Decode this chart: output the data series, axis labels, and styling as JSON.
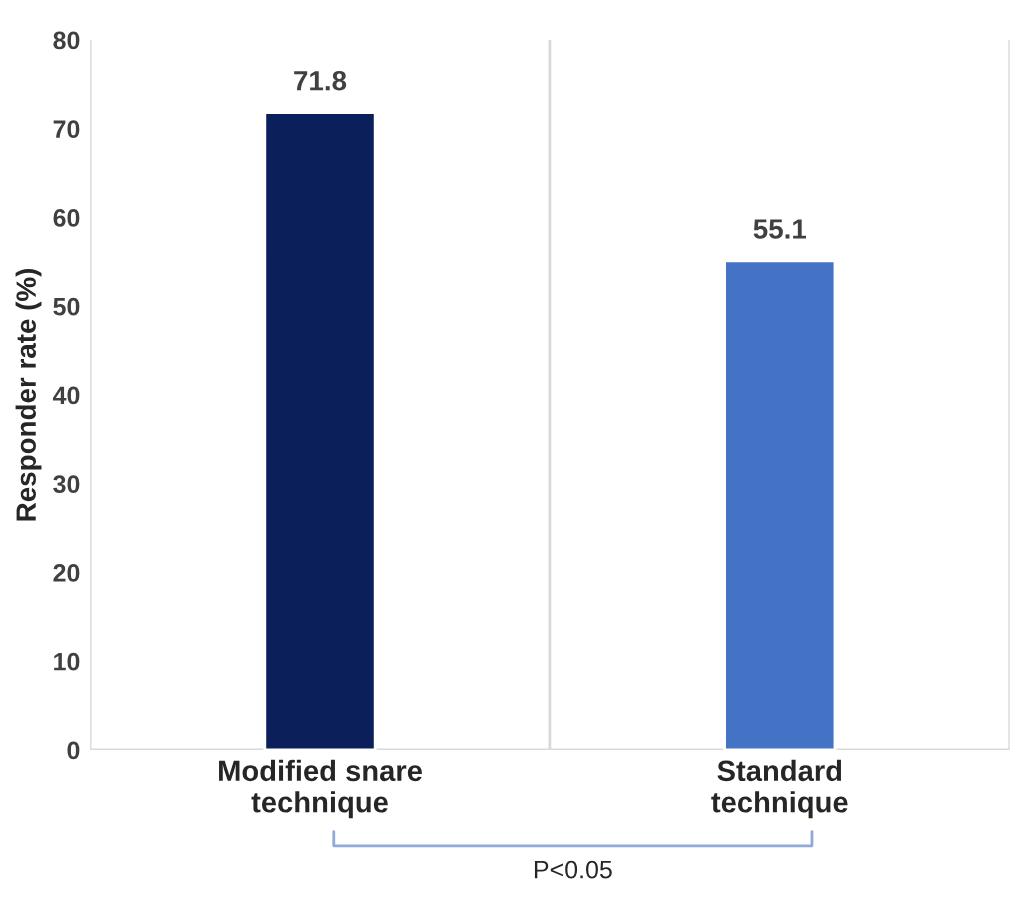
{
  "chart_data": {
    "type": "bar",
    "categories": [
      "Modified snare\ntechnique",
      "Standard\ntechnique"
    ],
    "values": [
      71.8,
      55.1
    ],
    "colors": [
      "#0b1f5b",
      "#4472c4"
    ],
    "ylabel": "Responder rate (%)",
    "ylim": [
      0,
      80
    ],
    "yticks": [
      0,
      10,
      20,
      30,
      40,
      50,
      60,
      70,
      80
    ],
    "data_labels": true,
    "grid": "x",
    "annotations": [
      "P<0.05"
    ]
  }
}
